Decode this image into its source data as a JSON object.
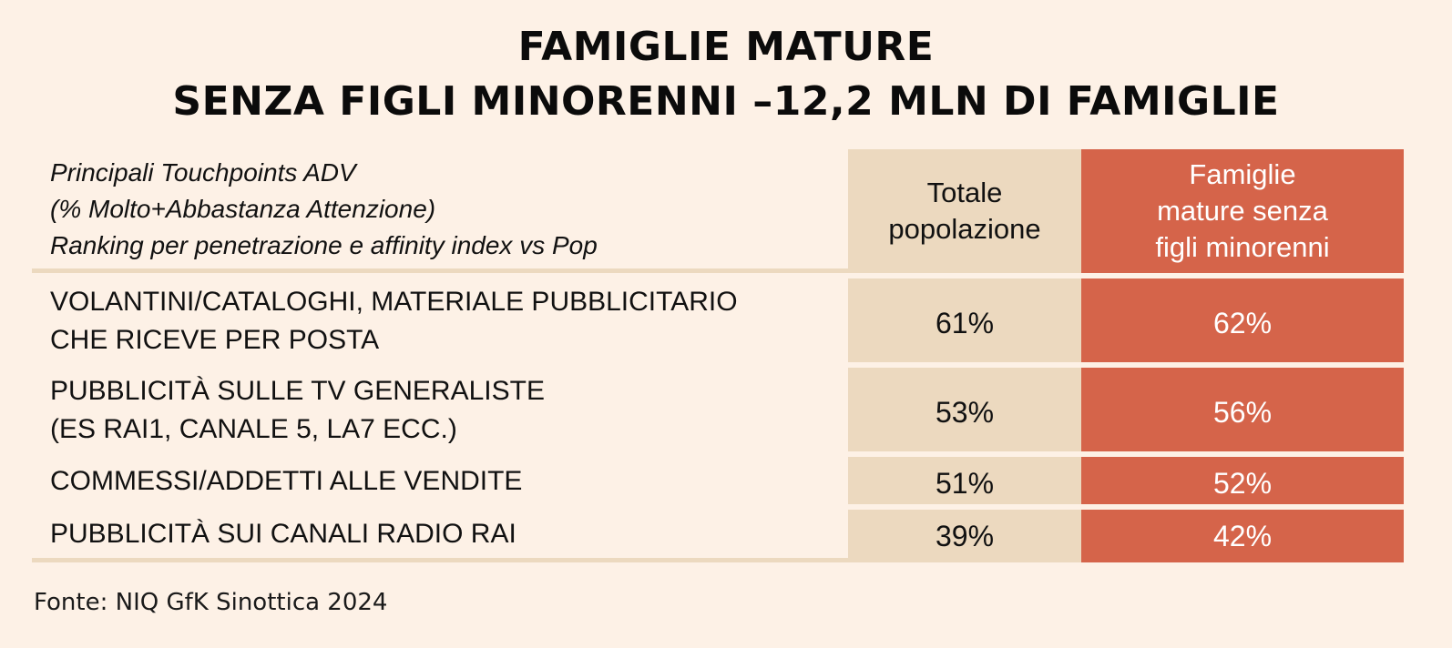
{
  "title": {
    "line1": "FAMIGLIE MATURE",
    "line2": "SENZA FIGLI MINORENNI –12,2 MLN DI FAMIGLIE"
  },
  "header": {
    "label_lines": [
      "Principali Touchpoints ADV",
      "(% Molto+Abbastanza Attenzione)",
      "Ranking per penetrazione e affinity index vs Pop"
    ],
    "col_pop_lines": [
      "Totale",
      "popolazione"
    ],
    "col_fam_lines": [
      "Famiglie",
      "mature senza",
      "figli minorenni"
    ]
  },
  "colors": {
    "background": "#fdf1e6",
    "pop_column": "#ecd9bf",
    "fam_column": "#d5644a"
  },
  "chart_data": {
    "type": "table",
    "columns": [
      "Totale popolazione",
      "Famiglie mature senza figli minorenni"
    ],
    "rows": [
      {
        "label_lines": [
          "VOLANTINI/CATALOGHI, MATERIALE PUBBLICITARIO",
          "CHE RICEVE PER POSTA"
        ],
        "pop": "61%",
        "fam": "62%"
      },
      {
        "label_lines": [
          "PUBBLICITÀ SULLE TV GENERALISTE",
          "(ES RAI1, CANALE 5, LA7 ECC.)"
        ],
        "pop": "53%",
        "fam": "56%"
      },
      {
        "label_lines": [
          "COMMESSI/ADDETTI ALLE VENDITE"
        ],
        "pop": "51%",
        "fam": "52%"
      },
      {
        "label_lines": [
          "PUBBLICITÀ SUI CANALI RADIO RAI"
        ],
        "pop": "39%",
        "fam": "42%"
      }
    ]
  },
  "source": "Fonte: NIQ GfK Sinottica 2024"
}
